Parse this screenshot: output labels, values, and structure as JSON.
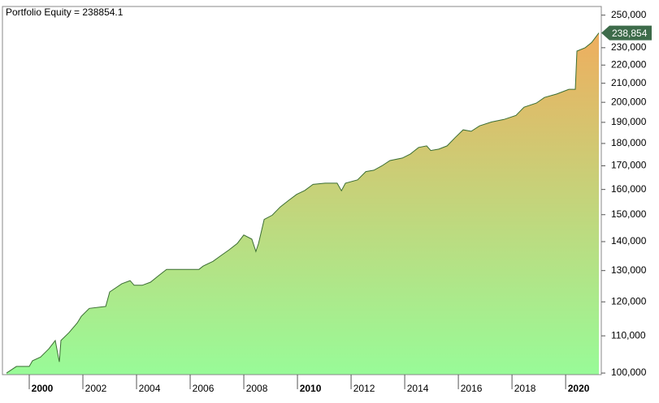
{
  "chart_data": {
    "type": "area",
    "title": "Portfolio Equity = 238854.1",
    "series": [
      {
        "name": "Portfolio Equity",
        "color": "#3b6e33",
        "gradient": [
          "#f5a85a",
          "#98fb98"
        ],
        "x": [
          1999.15,
          1999.52,
          2000.0,
          2000.12,
          2000.42,
          2000.73,
          2000.97,
          2001.12,
          2001.18,
          2001.48,
          2001.79,
          2001.94,
          2002.24,
          2002.85,
          2003.0,
          2003.45,
          2003.76,
          2003.91,
          2004.21,
          2004.52,
          2004.82,
          2005.12,
          2006.33,
          2006.48,
          2006.85,
          2007.15,
          2007.45,
          2007.76,
          2008.0,
          2008.3,
          2008.45,
          2008.55,
          2008.76,
          2009.06,
          2009.36,
          2009.67,
          2009.97,
          2010.27,
          2010.58,
          2011.03,
          2011.48,
          2011.64,
          2011.79,
          2012.24,
          2012.55,
          2012.85,
          2013.15,
          2013.45,
          2013.91,
          2014.21,
          2014.52,
          2014.82,
          2014.97,
          2015.27,
          2015.58,
          2015.88,
          2016.18,
          2016.48,
          2016.79,
          2017.24,
          2017.7,
          2018.15,
          2018.45,
          2018.91,
          2019.21,
          2019.67,
          2020.12,
          2020.36,
          2020.42,
          2020.73,
          2020.97,
          2021.24
        ],
        "values": [
          100000,
          101700,
          101700,
          103200,
          104200,
          106400,
          108700,
          102900,
          108700,
          110900,
          113700,
          115600,
          118000,
          118600,
          123100,
          125700,
          126700,
          125200,
          125200,
          126200,
          128300,
          130400,
          130400,
          131500,
          133100,
          135100,
          137100,
          139400,
          142400,
          140900,
          136500,
          139400,
          148200,
          149800,
          153000,
          155600,
          158000,
          159600,
          162100,
          162600,
          162600,
          159500,
          162600,
          164000,
          167500,
          168100,
          170000,
          172300,
          173400,
          175200,
          178200,
          178900,
          176800,
          177400,
          178900,
          182700,
          186400,
          185700,
          188300,
          190200,
          191400,
          193400,
          197500,
          199600,
          202500,
          204300,
          206800,
          206800,
          228000,
          230000,
          233100,
          238854.1
        ]
      }
    ],
    "last_value": {
      "value": 238854.1,
      "label": "238,854"
    },
    "log_y": true,
    "ylim": [
      99600,
      255600
    ],
    "yticks": [
      {
        "value": 100000,
        "label": "100,000"
      },
      {
        "value": 110000,
        "label": "110,000"
      },
      {
        "value": 120000,
        "label": "120,000"
      },
      {
        "value": 130000,
        "label": "130,000"
      },
      {
        "value": 140000,
        "label": "140,000"
      },
      {
        "value": 150000,
        "label": "150,000"
      },
      {
        "value": 160000,
        "label": "160,000"
      },
      {
        "value": 170000,
        "label": "170,000"
      },
      {
        "value": 180000,
        "label": "180,000"
      },
      {
        "value": 190000,
        "label": "190,000"
      },
      {
        "value": 200000,
        "label": "200,000"
      },
      {
        "value": 210000,
        "label": "210,000"
      },
      {
        "value": 220000,
        "label": "220,000"
      },
      {
        "value": 230000,
        "label": "230,000"
      },
      {
        "value": 250000,
        "label": "250,000"
      }
    ],
    "xlim": [
      1999,
      2021.33
    ],
    "xticks": [
      2000,
      2002,
      2004,
      2006,
      2008,
      2010,
      2012,
      2014,
      2016,
      2018,
      2020
    ]
  }
}
